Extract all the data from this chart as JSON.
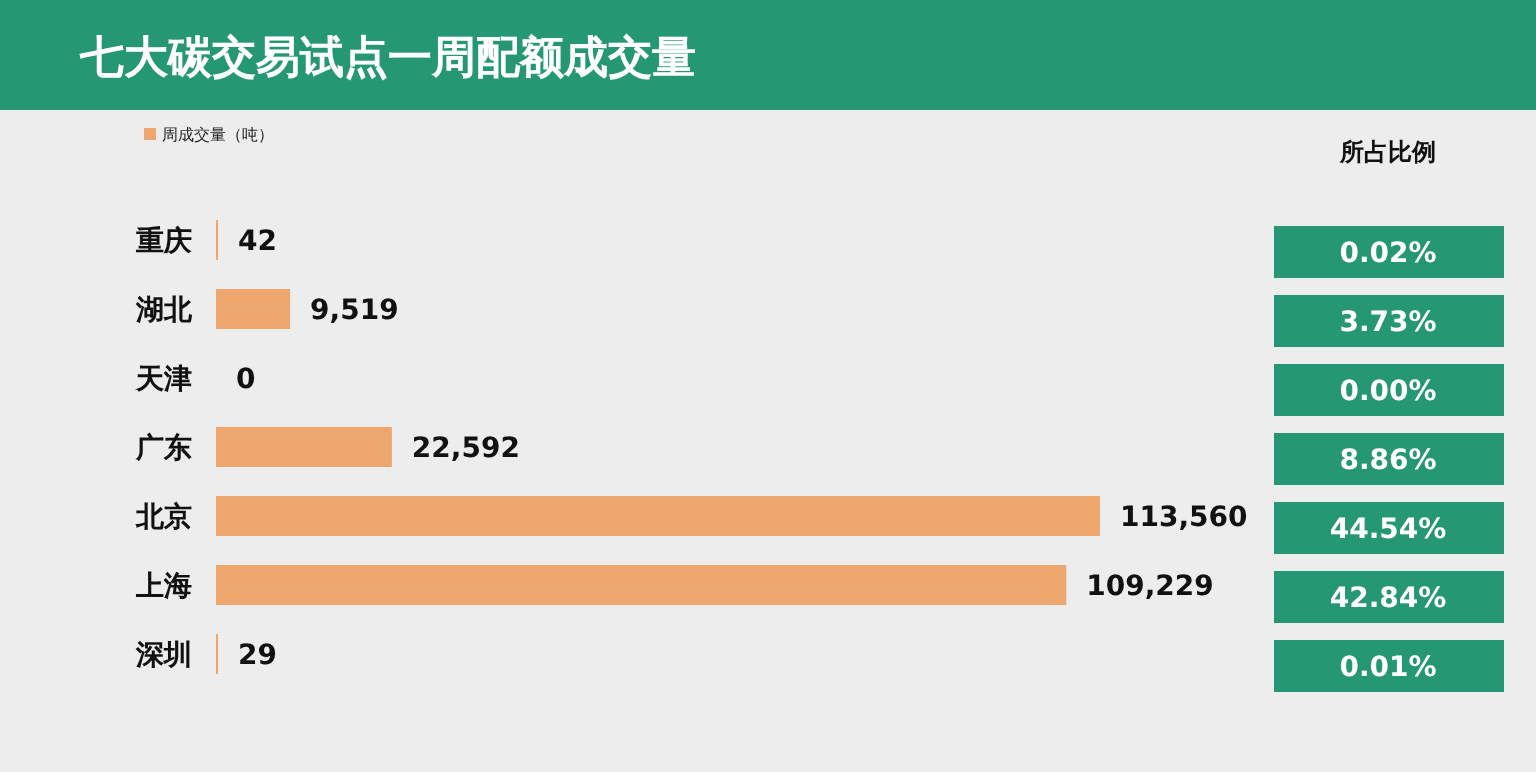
{
  "chart_data": {
    "type": "bar",
    "orientation": "horizontal",
    "title": "七大碳交易试点一周配额成交量",
    "categories": [
      "重庆",
      "湖北",
      "天津",
      "广东",
      "北京",
      "上海",
      "深圳"
    ],
    "series": [
      {
        "name": "周成交量（吨）",
        "color": "#eda66d",
        "values": [
          42,
          9519,
          0,
          22592,
          113560,
          109229,
          29
        ],
        "value_labels": [
          "42",
          "9,519",
          "0",
          "22,592",
          "113,560",
          "109,229",
          "29"
        ]
      }
    ],
    "legend": "top left",
    "annotations": [
      "所占比例",
      "0.02%",
      "3.73%",
      "0.00%",
      "8.86%",
      "44.54%",
      "42.84%",
      "0.01%"
    ]
  }
}
